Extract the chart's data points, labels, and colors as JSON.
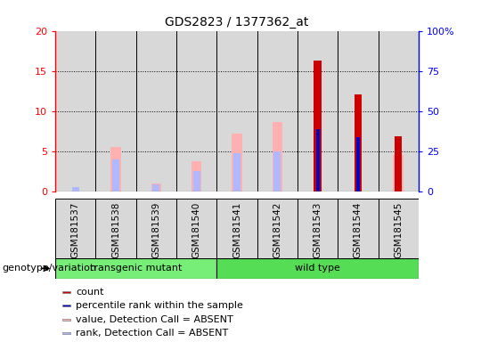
{
  "title": "GDS2823 / 1377362_at",
  "samples": [
    "GSM181537",
    "GSM181538",
    "GSM181539",
    "GSM181540",
    "GSM181541",
    "GSM181542",
    "GSM181543",
    "GSM181544",
    "GSM181545"
  ],
  "groups": [
    "transgenic mutant",
    "transgenic mutant",
    "transgenic mutant",
    "transgenic mutant",
    "wild type",
    "wild type",
    "wild type",
    "wild type",
    "wild type"
  ],
  "count_values": [
    0,
    0,
    0,
    0,
    0,
    0,
    16.3,
    12.1,
    6.9
  ],
  "rank_values": [
    0,
    0,
    0,
    0,
    0,
    0,
    7.8,
    6.8,
    0
  ],
  "absent_value_values": [
    0,
    5.5,
    1.0,
    3.8,
    7.2,
    8.7,
    0,
    0,
    4.5
  ],
  "absent_rank_values": [
    0.6,
    4.0,
    0.9,
    2.6,
    4.8,
    5.0,
    0,
    0,
    0
  ],
  "ylim": [
    0,
    20
  ],
  "y2lim": [
    0,
    100
  ],
  "yticks": [
    0,
    5,
    10,
    15,
    20
  ],
  "y2ticks": [
    0,
    25,
    50,
    75,
    100
  ],
  "y2ticklabels": [
    "0",
    "25",
    "50",
    "75",
    "100%"
  ],
  "count_color": "#cc0000",
  "rank_color": "#0000cc",
  "absent_value_color": "#ffb0b0",
  "absent_rank_color": "#b0b8ff",
  "absent_value_bar_width": 0.25,
  "absent_rank_bar_width": 0.18,
  "count_bar_width": 0.18,
  "rank_bar_width": 0.09,
  "bg_color": "#d8d8d8",
  "group_label": "genotype/variation",
  "group_colors": {
    "transgenic mutant": "#77ee77",
    "wild type": "#55dd55"
  },
  "legend_items": [
    {
      "label": "count",
      "color": "#cc0000"
    },
    {
      "label": "percentile rank within the sample",
      "color": "#0000cc"
    },
    {
      "label": "value, Detection Call = ABSENT",
      "color": "#ffb0b0"
    },
    {
      "label": "rank, Detection Call = ABSENT",
      "color": "#b0b8ff"
    }
  ]
}
